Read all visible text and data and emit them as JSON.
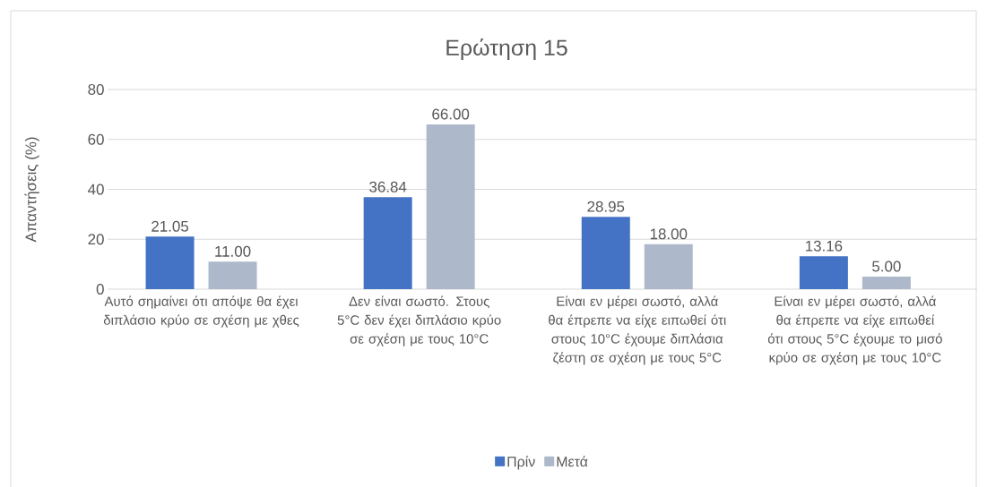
{
  "chart_data": {
    "type": "bar",
    "title": "Ερώτηση 15",
    "ylabel": "Απαντήσεις (%)",
    "categories": [
      "Αυτό σημαίνει ότι απόψε θα έχει διπλάσιο κρύο σε σχέση με χθες",
      "Δεν είναι σωστό. Στους 5°C δεν έχει διπλάσιο κρύο σε σχέση με τους 10°C",
      "Είναι εν μέρει σωστό, αλλά θα έπρεπε να είχε ειπωθεί ότι στους 10°C έχουμε διπλάσια ζέστη σε σχέση με τους 5°C",
      "Είναι εν μέρει σωστό, αλλά θα έπρεπε να είχε ειπωθεί ότι στους 5°C έχουμε το μισό κρύο σε σχέση με τους 10°C"
    ],
    "series": [
      {
        "name": "Πρίν",
        "color": "#4472c4",
        "values": [
          21.05,
          36.84,
          28.95,
          13.16
        ],
        "value_labels": [
          "21.05",
          "36.84",
          "28.95",
          "13.16"
        ]
      },
      {
        "name": "Μετά",
        "color": "#adb9ca",
        "values": [
          11,
          66,
          18,
          5
        ],
        "value_labels": [
          "11.00",
          "66.00",
          "18.00",
          "5.00"
        ]
      }
    ],
    "ylim": [
      0,
      80
    ],
    "yticks": [
      0,
      20,
      40,
      60,
      80
    ],
    "grid": "y",
    "legend": "bottom"
  }
}
